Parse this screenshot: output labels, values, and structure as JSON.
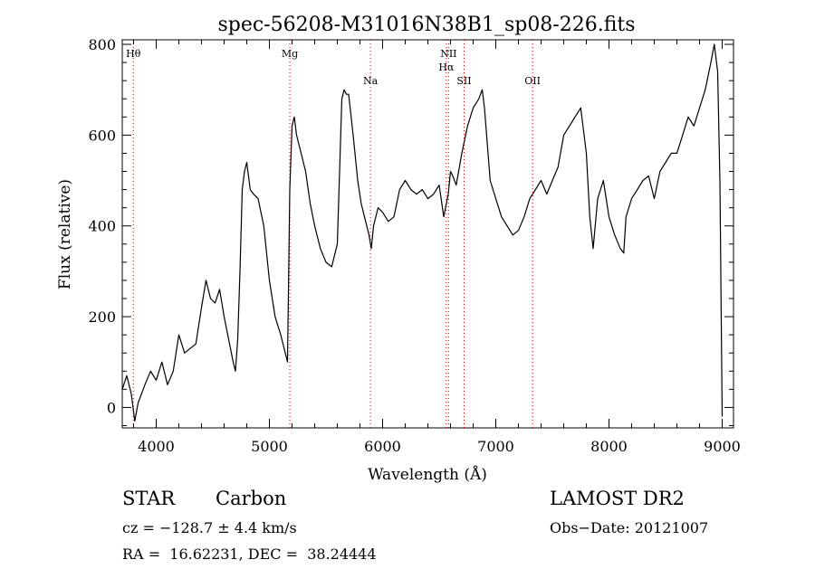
{
  "chart_data": {
    "type": "line",
    "title": "spec-56208-M31016N38B1_sp08-226.fits",
    "xlabel": "Wavelength (Å)",
    "ylabel": "Flux (relative)",
    "xlim": [
      3700,
      9100
    ],
    "ylim": [
      -45,
      810
    ],
    "xticks": [
      4000,
      5000,
      6000,
      7000,
      8000,
      9000
    ],
    "yticks": [
      0,
      200,
      400,
      600,
      800
    ],
    "series": [
      {
        "color": "#000000",
        "x": [
          3700,
          3740,
          3780,
          3810,
          3840,
          3870,
          3900,
          3950,
          4000,
          4050,
          4100,
          4150,
          4200,
          4250,
          4300,
          4350,
          4400,
          4440,
          4480,
          4520,
          4560,
          4600,
          4640,
          4680,
          4700,
          4720,
          4740,
          4760,
          4780,
          4800,
          4830,
          4860,
          4900,
          4950,
          5000,
          5050,
          5100,
          5140,
          5160,
          5180,
          5200,
          5220,
          5240,
          5280,
          5320,
          5360,
          5400,
          5450,
          5500,
          5550,
          5600,
          5640,
          5660,
          5680,
          5700,
          5740,
          5780,
          5810,
          5840,
          5880,
          5900,
          5920,
          5960,
          6000,
          6050,
          6100,
          6150,
          6200,
          6250,
          6300,
          6350,
          6400,
          6450,
          6500,
          6540,
          6580,
          6600,
          6620,
          6650,
          6700,
          6750,
          6800,
          6850,
          6880,
          6900,
          6950,
          7000,
          7050,
          7100,
          7150,
          7200,
          7250,
          7300,
          7350,
          7400,
          7450,
          7500,
          7550,
          7600,
          7650,
          7700,
          7750,
          7800,
          7830,
          7860,
          7900,
          7950,
          8000,
          8050,
          8100,
          8130,
          8150,
          8200,
          8250,
          8300,
          8350,
          8400,
          8450,
          8500,
          8550,
          8600,
          8650,
          8700,
          8750,
          8800,
          8850,
          8900,
          8930,
          8960,
          8980,
          9000
        ],
        "y": [
          40,
          70,
          30,
          -30,
          10,
          30,
          50,
          80,
          60,
          100,
          50,
          80,
          160,
          120,
          130,
          140,
          220,
          280,
          240,
          230,
          260,
          200,
          150,
          100,
          80,
          150,
          300,
          480,
          520,
          540,
          480,
          470,
          460,
          400,
          280,
          200,
          160,
          120,
          100,
          480,
          620,
          640,
          600,
          560,
          520,
          450,
          400,
          350,
          320,
          310,
          360,
          680,
          700,
          690,
          690,
          600,
          500,
          450,
          420,
          380,
          350,
          400,
          440,
          430,
          410,
          420,
          480,
          500,
          480,
          470,
          480,
          460,
          470,
          490,
          420,
          470,
          520,
          510,
          490,
          560,
          620,
          660,
          680,
          700,
          660,
          500,
          460,
          420,
          400,
          380,
          390,
          420,
          460,
          480,
          500,
          470,
          500,
          530,
          600,
          620,
          640,
          660,
          560,
          420,
          350,
          460,
          500,
          420,
          380,
          350,
          340,
          420,
          460,
          480,
          500,
          510,
          460,
          520,
          540,
          560,
          560,
          600,
          640,
          620,
          660,
          700,
          760,
          800,
          740,
          500,
          -20
        ]
      }
    ]
  },
  "line_labels": [
    {
      "label": "Hθ",
      "wavelength": 3798
    },
    {
      "label": "Mg",
      "wavelength": 5180
    },
    {
      "label": "Na",
      "wavelength": 5893
    },
    {
      "label": "NII",
      "wavelength": 6583
    },
    {
      "label": "Hα",
      "wavelength": 6563
    },
    {
      "label": "SII",
      "wavelength": 6720
    },
    {
      "label": "OII",
      "wavelength": 7325
    }
  ],
  "line_marker_color": "#cc0000",
  "info": {
    "object_class": "STAR",
    "subclass": "Carbon",
    "survey": "LAMOST DR2",
    "cz": "cz = −128.7 ± 4.4 km/s",
    "obs_date": "Obs−Date: 20121007",
    "coords": "RA =  16.62231, DEC =  38.24444"
  }
}
